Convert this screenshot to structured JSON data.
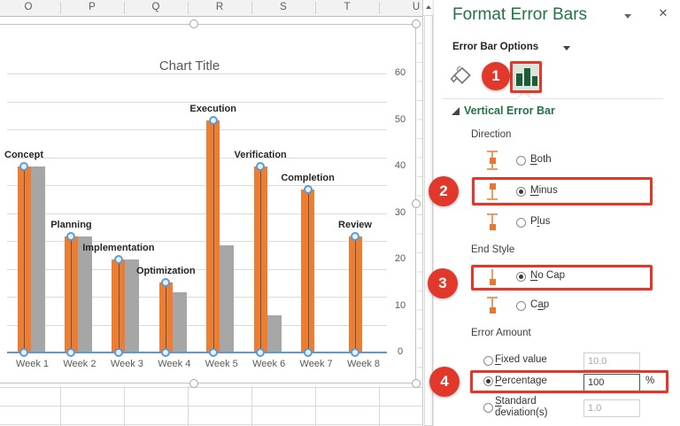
{
  "spreadsheet": {
    "column_headers": [
      "O",
      "P",
      "Q",
      "R",
      "S",
      "T",
      "U"
    ]
  },
  "chart_data": {
    "type": "bar",
    "title": "Chart Title",
    "categories": [
      "Week 1",
      "Week 2",
      "Week 3",
      "Week 4",
      "Week 5",
      "Week 6",
      "Week 7",
      "Week 8"
    ],
    "series": [
      {
        "name": "orange-bars",
        "color": "#ED7D31",
        "values": [
          40,
          25,
          20,
          15,
          50,
          40,
          35,
          25
        ],
        "point_labels": [
          "Concept",
          "Planning",
          "Implementation",
          "Optimization",
          "Execution",
          "Verification",
          "Completion",
          "Review"
        ]
      },
      {
        "name": "gray-bars",
        "color": "#A6A6A6",
        "values": [
          40,
          25,
          20,
          13,
          23,
          8,
          0,
          0
        ]
      },
      {
        "name": "blue-baseline-line",
        "type": "line",
        "color": "#5B9BD5",
        "values": [
          0,
          0,
          0,
          0,
          0,
          0,
          0,
          0
        ]
      }
    ],
    "ylim": [
      0,
      60
    ],
    "y_ticks": [
      0,
      10,
      20,
      30,
      40,
      50,
      60
    ],
    "gridline_step": 6,
    "value_axis_side": "right",
    "grid": true,
    "legend": false,
    "error_bars": {
      "on_series": "orange-bars",
      "direction": "minus",
      "end_style": "no_cap",
      "amount_percentage": 100
    }
  },
  "panel": {
    "title": "Format Error Bars",
    "options_label": "Error Bar Options",
    "tabs": [
      {
        "name": "fill-line",
        "icon": "paint-bucket-icon",
        "selected": false
      },
      {
        "name": "error-bar-options",
        "icon": "error-bar-chart-icon",
        "selected": true
      }
    ],
    "section": {
      "title": "Vertical Error Bar",
      "expanded": true
    },
    "groups": [
      {
        "label": "Direction",
        "options": [
          {
            "id": "both",
            "icon": "both",
            "pre": "",
            "key": "B",
            "post": "oth",
            "selected": false
          },
          {
            "id": "minus",
            "icon": "minus",
            "pre": "",
            "key": "M",
            "post": "inus",
            "selected": true
          },
          {
            "id": "plus",
            "icon": "plus",
            "pre": "P",
            "key": "l",
            "post": "us",
            "selected": false
          }
        ]
      },
      {
        "label": "End Style",
        "options": [
          {
            "id": "no-cap",
            "icon": "nocap",
            "pre": "",
            "key": "N",
            "post": "o Cap",
            "selected": true
          },
          {
            "id": "cap",
            "icon": "cap",
            "pre": "C",
            "key": "a",
            "post": "p",
            "selected": false
          }
        ]
      },
      {
        "label": "Error Amount",
        "options": [
          {
            "id": "fixed-value",
            "pre": "",
            "key": "F",
            "post": "ixed value",
            "selected": false,
            "input": "10.0",
            "muted": true
          },
          {
            "id": "percentage",
            "pre": "",
            "key": "P",
            "post": "ercentage",
            "selected": true,
            "input": "100",
            "active": true,
            "suffix": "%"
          },
          {
            "id": "standard-deviation",
            "pre": "",
            "key": "S",
            "post": "tandard",
            "line2": "deviation(s)",
            "selected": false,
            "input": "1.0",
            "muted": true
          }
        ]
      }
    ]
  },
  "annotations": {
    "badges": [
      "1",
      "2",
      "3",
      "4"
    ]
  }
}
